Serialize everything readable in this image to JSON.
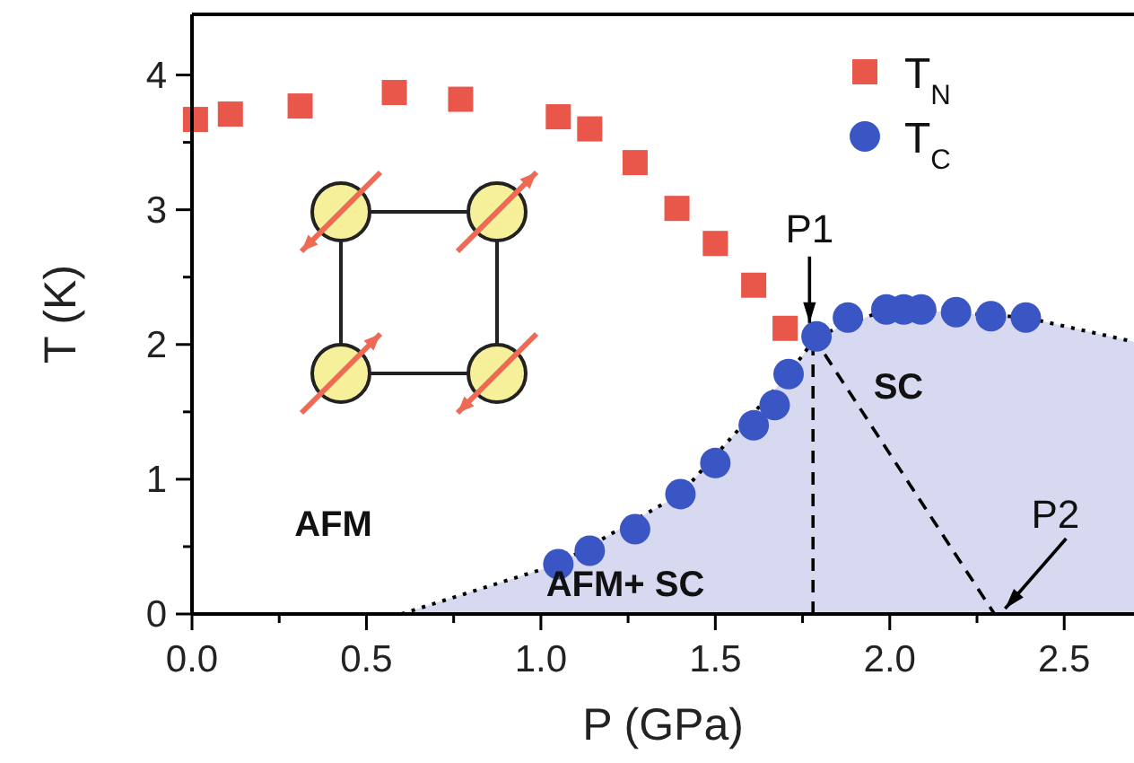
{
  "chart_data": {
    "type": "scatter",
    "xlabel": "P (GPa)",
    "ylabel": "T (K)",
    "xlim": [
      0,
      2.7
    ],
    "ylim": [
      0,
      4.45
    ],
    "xticks": [
      {
        "value": 0,
        "label": "0.0"
      },
      {
        "value": 0.25,
        "label": null
      },
      {
        "value": 0.5,
        "label": "0.5"
      },
      {
        "value": 0.75,
        "label": null
      },
      {
        "value": 1,
        "label": "1.0"
      },
      {
        "value": 1.25,
        "label": null
      },
      {
        "value": 1.5,
        "label": "1.5"
      },
      {
        "value": 1.75,
        "label": null
      },
      {
        "value": 2,
        "label": "2.0"
      },
      {
        "value": 2.25,
        "label": null
      },
      {
        "value": 2.5,
        "label": "2.5"
      }
    ],
    "yticks": [
      0,
      {
        "value": 0.5,
        "label": null
      },
      1,
      {
        "value": 1.5,
        "label": null
      },
      2,
      {
        "value": 2.5,
        "label": null
      },
      3,
      {
        "value": 3.5,
        "label": null
      },
      4
    ],
    "legend": "top right",
    "grid": false,
    "series": [
      {
        "type": "area",
        "color": "#d6d9f0",
        "line_style": "dotted",
        "x": [
          0.6,
          1.05,
          1.4,
          1.71,
          1.79,
          2.0,
          2.39,
          2.7
        ],
        "values": [
          0,
          0.37,
          0.89,
          1.78,
          2.06,
          2.27,
          2.2,
          2.02
        ]
      },
      {
        "type": "line",
        "color": "#000000",
        "line_style": "dashed",
        "x": [
          1.78,
          1.78
        ],
        "values": [
          0,
          2.06
        ]
      },
      {
        "type": "line",
        "color": "#000000",
        "line_style": "dashed",
        "x": [
          1.78,
          2.3
        ],
        "values": [
          2.06,
          0
        ]
      },
      {
        "name": "T$_{N}$",
        "color": "#e8574a",
        "marker": "square",
        "x": [
          0.01,
          0.11,
          0.31,
          0.58,
          0.77,
          1.05,
          1.14,
          1.27,
          1.39,
          1.5,
          1.61,
          1.7
        ],
        "values": [
          3.67,
          3.71,
          3.77,
          3.87,
          3.82,
          3.69,
          3.6,
          3.35,
          3.01,
          2.75,
          2.44,
          2.12
        ]
      },
      {
        "name": "T$_{C}$",
        "color": "#3a55c4",
        "marker": "circle",
        "x": [
          1.05,
          1.14,
          1.27,
          1.4,
          1.5,
          1.61,
          1.67,
          1.71,
          1.79,
          1.88,
          1.99,
          2.04,
          2.09,
          2.19,
          2.29,
          2.39
        ],
        "values": [
          0.37,
          0.47,
          0.63,
          0.89,
          1.12,
          1.4,
          1.55,
          1.78,
          2.06,
          2.2,
          2.26,
          2.26,
          2.26,
          2.24,
          2.21,
          2.2
        ]
      }
    ],
    "annotations": [
      {
        "text": "P1",
        "x": 1.77,
        "y": 2.12
      },
      {
        "text": "P2",
        "x": 2.31,
        "y": 0
      },
      "AFM",
      "AFM+ SC",
      "SC"
    ]
  }
}
